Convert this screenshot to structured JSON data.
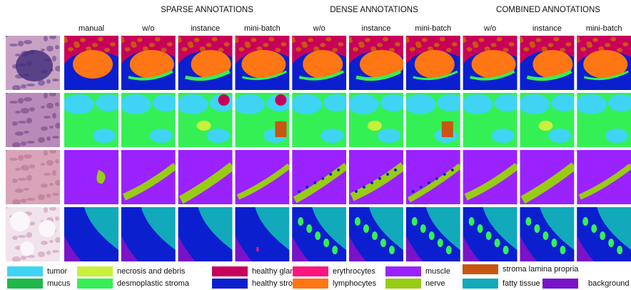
{
  "header": {
    "groups": [
      "SPARSE ANNOTATIONS",
      "DENSE ANNOTATIONS",
      "COMBINED ANNOTATIONS"
    ],
    "columns": [
      "manual",
      "w/o",
      "instance",
      "mini-batch",
      "w/o",
      "instance",
      "mini-batch",
      "w/o",
      "instance",
      "mini-batch"
    ]
  },
  "legend": [
    {
      "label": "tumor",
      "color": "#3fd4f4"
    },
    {
      "label": "mucus",
      "color": "#1fb84a"
    },
    {
      "label": "necrosis and debris",
      "color": "#c8f23a"
    },
    {
      "label": "desmoplastic stroma",
      "color": "#34f055"
    },
    {
      "label": "healthy glands",
      "color": "#c8005a"
    },
    {
      "label": "healthy stroma",
      "color": "#0b1fcf"
    },
    {
      "label": "erythrocytes",
      "color": "#ff1580"
    },
    {
      "label": "lymphocytes",
      "color": "#ff7614"
    },
    {
      "label": "muscle",
      "color": "#9a22ff"
    },
    {
      "label": "nerve",
      "color": "#98cc14"
    },
    {
      "label": "stroma lamina propria",
      "color": "#c95512"
    },
    {
      "label": "fatty tissue",
      "color": "#12a9bb"
    },
    {
      "label": "background",
      "color": "#7a12c8"
    }
  ]
}
